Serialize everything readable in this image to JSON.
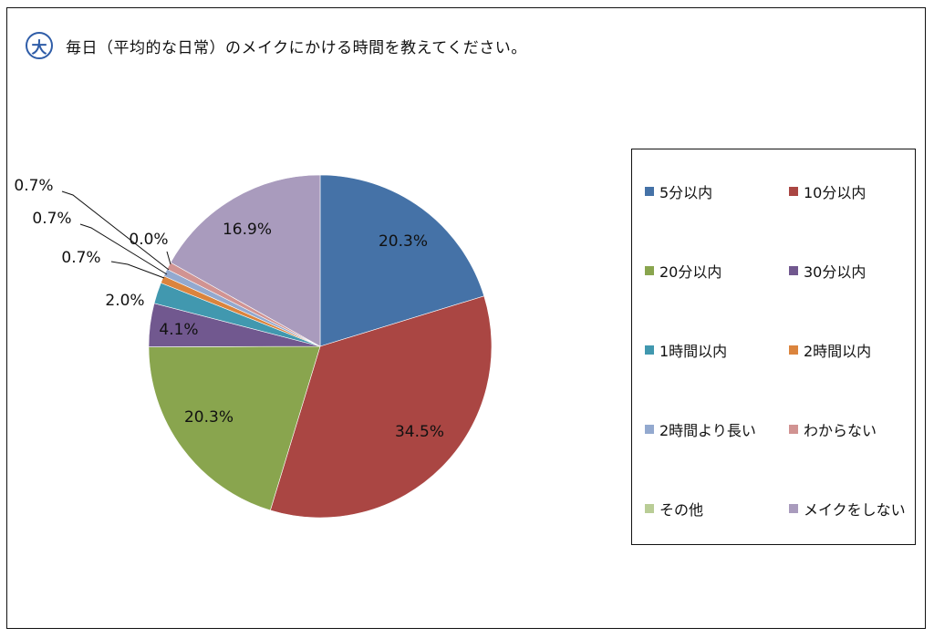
{
  "header": {
    "badge_text": "大",
    "title": "毎日（平均的な日常）のメイクにかける時間を教えてください。"
  },
  "chart_data": {
    "type": "pie",
    "title": "毎日（平均的な日常）のメイクにかける時間を教えてください。",
    "start_angle_deg": 0,
    "direction": "clockwise",
    "legend_position": "right",
    "slices": [
      {
        "name": "5分以内",
        "value": 20.3,
        "label": "20.3%",
        "color": "#4572a7"
      },
      {
        "name": "10分以内",
        "value": 34.5,
        "label": "34.5%",
        "color": "#aa4643"
      },
      {
        "name": "20分以内",
        "value": 20.3,
        "label": "20.3%",
        "color": "#89a54e"
      },
      {
        "name": "30分以内",
        "value": 4.1,
        "label": "4.1%",
        "color": "#71588f"
      },
      {
        "name": "1時間以内",
        "value": 2.0,
        "label": "2.0%",
        "color": "#4198af"
      },
      {
        "name": "2時間以内",
        "value": 0.7,
        "label": "0.7%",
        "color": "#db843d"
      },
      {
        "name": "2時間より長い",
        "value": 0.7,
        "label": "0.7%",
        "color": "#93a9cf"
      },
      {
        "name": "わからない",
        "value": 0.7,
        "label": "0.7%",
        "color": "#d19392"
      },
      {
        "name": "その他",
        "value": 0.0,
        "label": "0.0%",
        "color": "#b9cd96"
      },
      {
        "name": "メイクをしない",
        "value": 16.9,
        "label": "16.9%",
        "color": "#a99bbd"
      }
    ]
  }
}
